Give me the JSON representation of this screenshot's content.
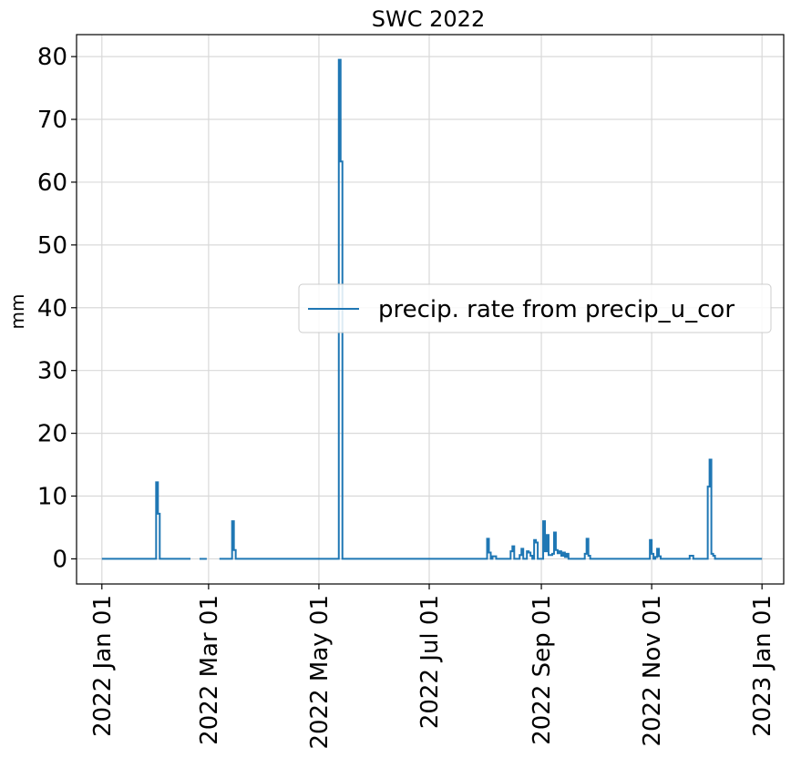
{
  "chart_data": {
    "type": "line",
    "title": "SWC 2022",
    "xlabel": "",
    "ylabel": "mm",
    "x_axis": "date",
    "xlim": [
      "2021-12-18",
      "2023-01-13"
    ],
    "ylim": [
      -4,
      83.5
    ],
    "grid": true,
    "legend_position": "center-right",
    "x_ticks": [
      {
        "date": "2022-01-01",
        "label": "2022 Jan 01"
      },
      {
        "date": "2022-03-01",
        "label": "2022 Mar 01"
      },
      {
        "date": "2022-05-01",
        "label": "2022 May 01"
      },
      {
        "date": "2022-07-01",
        "label": "2022 Jul 01"
      },
      {
        "date": "2022-09-01",
        "label": "2022 Sep 01"
      },
      {
        "date": "2022-11-01",
        "label": "2022 Nov 01"
      },
      {
        "date": "2023-01-01",
        "label": "2023 Jan 01"
      }
    ],
    "y_ticks": [
      0,
      10,
      20,
      30,
      40,
      50,
      60,
      70,
      80
    ],
    "series": [
      {
        "name": "precip. rate from precip_u_cor",
        "color": "#1f77b4",
        "drawstyle": "steps",
        "segments": [
          [
            [
              "2022-01-01",
              0
            ],
            [
              "2022-01-30",
              0
            ],
            [
              "2022-01-31",
              12.2
            ],
            [
              "2022-02-01",
              7.2
            ],
            [
              "2022-02-02",
              0
            ],
            [
              "2022-02-19",
              0
            ]
          ],
          [
            [
              "2022-02-24",
              0
            ],
            [
              "2022-02-28",
              0
            ]
          ],
          [
            [
              "2022-03-07",
              0
            ],
            [
              "2022-03-13",
              0
            ],
            [
              "2022-03-14",
              6.0
            ],
            [
              "2022-03-15",
              1.4
            ],
            [
              "2022-03-16",
              0
            ],
            [
              "2022-05-11",
              0
            ],
            [
              "2022-05-12",
              79.5
            ],
            [
              "2022-05-13",
              63.3
            ],
            [
              "2022-05-14",
              0
            ],
            [
              "2022-08-01",
              0
            ],
            [
              "2022-08-02",
              3.2
            ],
            [
              "2022-08-03",
              1.0
            ],
            [
              "2022-08-04",
              0
            ],
            [
              "2022-08-05",
              0.4
            ],
            [
              "2022-08-07",
              0
            ],
            [
              "2022-08-14",
              0
            ],
            [
              "2022-08-15",
              1.2
            ],
            [
              "2022-08-16",
              2.0
            ],
            [
              "2022-08-17",
              0
            ],
            [
              "2022-08-20",
              0.6
            ],
            [
              "2022-08-21",
              1.6
            ],
            [
              "2022-08-22",
              0
            ],
            [
              "2022-08-24",
              1.2
            ],
            [
              "2022-08-25",
              1.0
            ],
            [
              "2022-08-26",
              0.5
            ],
            [
              "2022-08-27",
              0
            ],
            [
              "2022-08-28",
              3.0
            ],
            [
              "2022-08-29",
              2.6
            ],
            [
              "2022-08-30",
              0
            ],
            [
              "2022-09-01",
              0
            ],
            [
              "2022-09-02",
              6.0
            ],
            [
              "2022-09-03",
              1.2
            ],
            [
              "2022-09-04",
              3.8
            ],
            [
              "2022-09-05",
              0.6
            ],
            [
              "2022-09-07",
              0.8
            ],
            [
              "2022-09-08",
              4.2
            ],
            [
              "2022-09-09",
              1.4
            ],
            [
              "2022-09-10",
              0.9
            ],
            [
              "2022-09-11",
              1.2
            ],
            [
              "2022-09-12",
              0.5
            ],
            [
              "2022-09-13",
              1.0
            ],
            [
              "2022-09-14",
              0.3
            ],
            [
              "2022-09-15",
              0.8
            ],
            [
              "2022-09-16",
              0
            ],
            [
              "2022-09-24",
              0
            ],
            [
              "2022-09-25",
              0.8
            ],
            [
              "2022-09-26",
              3.2
            ],
            [
              "2022-09-27",
              0.5
            ],
            [
              "2022-09-28",
              0
            ],
            [
              "2022-10-30",
              0
            ],
            [
              "2022-10-31",
              3.0
            ],
            [
              "2022-11-01",
              0.8
            ],
            [
              "2022-11-02",
              0
            ],
            [
              "2022-11-03",
              0.3
            ],
            [
              "2022-11-04",
              1.6
            ],
            [
              "2022-11-05",
              0.4
            ],
            [
              "2022-11-06",
              0
            ],
            [
              "2022-11-21",
              0
            ],
            [
              "2022-11-22",
              0.5
            ],
            [
              "2022-11-24",
              0
            ],
            [
              "2022-12-01",
              0
            ],
            [
              "2022-12-02",
              11.5
            ],
            [
              "2022-12-03",
              15.8
            ],
            [
              "2022-12-04",
              0.8
            ],
            [
              "2022-12-05",
              0.5
            ],
            [
              "2022-12-06",
              0
            ],
            [
              "2023-01-01",
              0
            ]
          ]
        ]
      }
    ]
  }
}
